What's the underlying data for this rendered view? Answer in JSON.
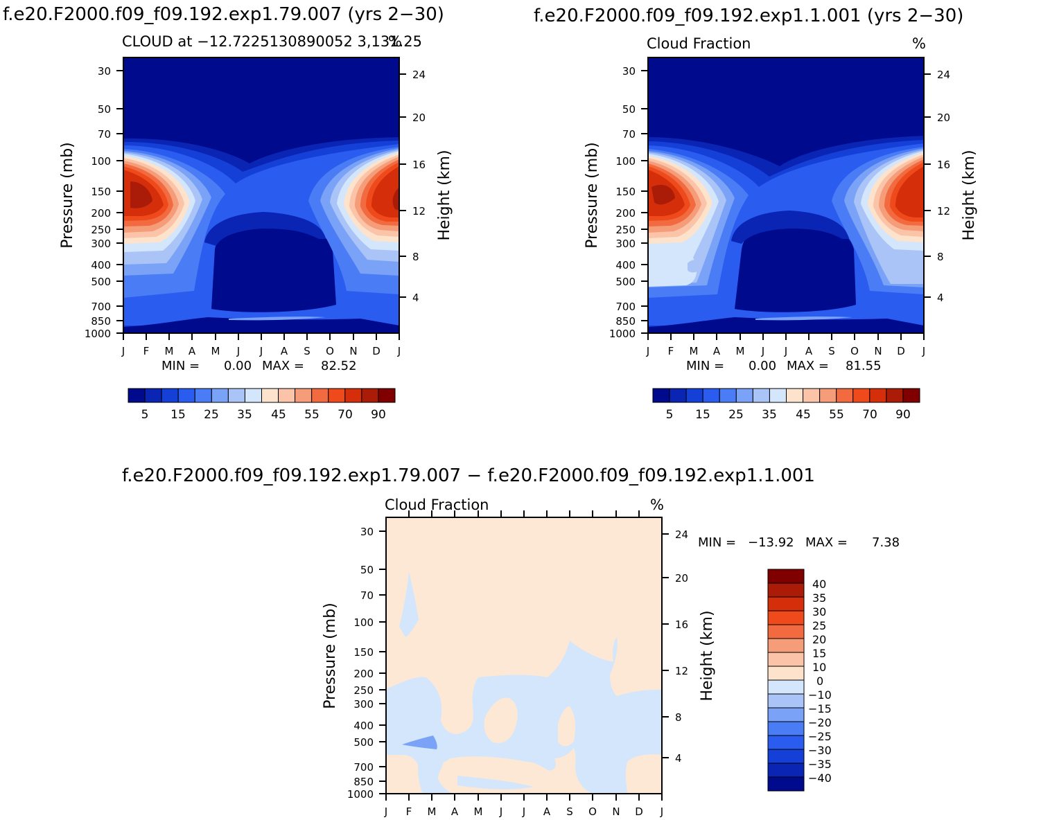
{
  "top_left_title": "f.e20.F2000.f09_f09.192.exp1.79.007 (yrs 2−30)",
  "top_right_title": "f.e20.F2000.f09_f09.192.exp1.1.001 (yrs 2−30)",
  "bottom_title": "f.e20.F2000.f09_f09.192.exp1.79.007 − f.e20.F2000.f09_f09.192.exp1.1.001",
  "colors": {
    "field": [
      "#000a8c",
      "#0a24b4",
      "#1440d8",
      "#2a5cf0",
      "#4a7cf5",
      "#7aa2f7",
      "#aac4f8",
      "#d4e6fb",
      "#fde2cc",
      "#fbc4a8",
      "#f59c78",
      "#f26a40",
      "#ee4a1c",
      "#d42e0a",
      "#aa1c08",
      "#800000"
    ],
    "diff": [
      "#000a8c",
      "#0a24b4",
      "#1440d8",
      "#2a5cf0",
      "#4a7cf5",
      "#7aa2f7",
      "#aac4f8",
      "#d4e6fb",
      "#fde2cc",
      "#fbc4a8",
      "#f59c78",
      "#f26a40",
      "#ee4a1c",
      "#d42e0a",
      "#aa1c08",
      "#800000"
    ]
  },
  "chart_data": [
    {
      "type": "heatmap",
      "name": "model-79",
      "title": "CLOUD at −12.7225130890052 3,131.25",
      "units": "%",
      "xlabel": "",
      "ylabel": "Pressure (mb)",
      "ylabel_right": "Height (km)",
      "x_ticks": [
        "J",
        "F",
        "M",
        "A",
        "M",
        "J",
        "J",
        "A",
        "S",
        "O",
        "N",
        "D",
        "J"
      ],
      "y_ticks": [
        "30",
        "50",
        "70",
        "100",
        "150",
        "200",
        "250",
        "300",
        "400",
        "500",
        "700",
        "850",
        "1000"
      ],
      "y_ticks_right": [
        "24",
        "20",
        "16",
        "12",
        "8",
        "4"
      ],
      "ylim": [
        1000,
        25
      ],
      "min_label": "MIN =",
      "min_value": "0.00",
      "max_label": "MAX =",
      "max_value": "82.52",
      "colorbar_labels": [
        "5",
        "15",
        "25",
        "35",
        "45",
        "55",
        "70",
        "90"
      ]
    },
    {
      "type": "heatmap",
      "name": "model-1",
      "title": "Cloud Fraction",
      "units": "%",
      "xlabel": "",
      "ylabel": "Pressure (mb)",
      "ylabel_right": "Height (km)",
      "x_ticks": [
        "J",
        "F",
        "M",
        "A",
        "M",
        "J",
        "J",
        "A",
        "S",
        "O",
        "N",
        "D",
        "J"
      ],
      "y_ticks": [
        "30",
        "50",
        "70",
        "100",
        "150",
        "200",
        "250",
        "300",
        "400",
        "500",
        "700",
        "850",
        "1000"
      ],
      "y_ticks_right": [
        "24",
        "20",
        "16",
        "12",
        "8",
        "4"
      ],
      "ylim": [
        1000,
        25
      ],
      "min_label": "MIN =",
      "min_value": "0.00",
      "max_label": "MAX =",
      "max_value": "81.55",
      "colorbar_labels": [
        "5",
        "15",
        "25",
        "35",
        "45",
        "55",
        "70",
        "90"
      ]
    },
    {
      "type": "heatmap",
      "name": "difference",
      "title": "Cloud Fraction",
      "units": "%",
      "xlabel": "",
      "ylabel": "Pressure (mb)",
      "ylabel_right": "Height (km)",
      "x_ticks": [
        "J",
        "F",
        "M",
        "A",
        "M",
        "J",
        "J",
        "A",
        "S",
        "O",
        "N",
        "D",
        "J"
      ],
      "y_ticks": [
        "30",
        "50",
        "70",
        "100",
        "150",
        "200",
        "250",
        "300",
        "400",
        "500",
        "700",
        "850",
        "1000"
      ],
      "y_ticks_right": [
        "24",
        "20",
        "16",
        "12",
        "8",
        "4"
      ],
      "ylim": [
        1000,
        25
      ],
      "min_label": "MIN =",
      "min_value": "−13.92",
      "max_label": "MAX =",
      "max_value": "7.38",
      "colorbar_labels": [
        "40",
        "35",
        "30",
        "25",
        "20",
        "15",
        "10",
        "0",
        "−10",
        "−15",
        "−20",
        "−25",
        "−30",
        "−35",
        "−40"
      ]
    }
  ]
}
